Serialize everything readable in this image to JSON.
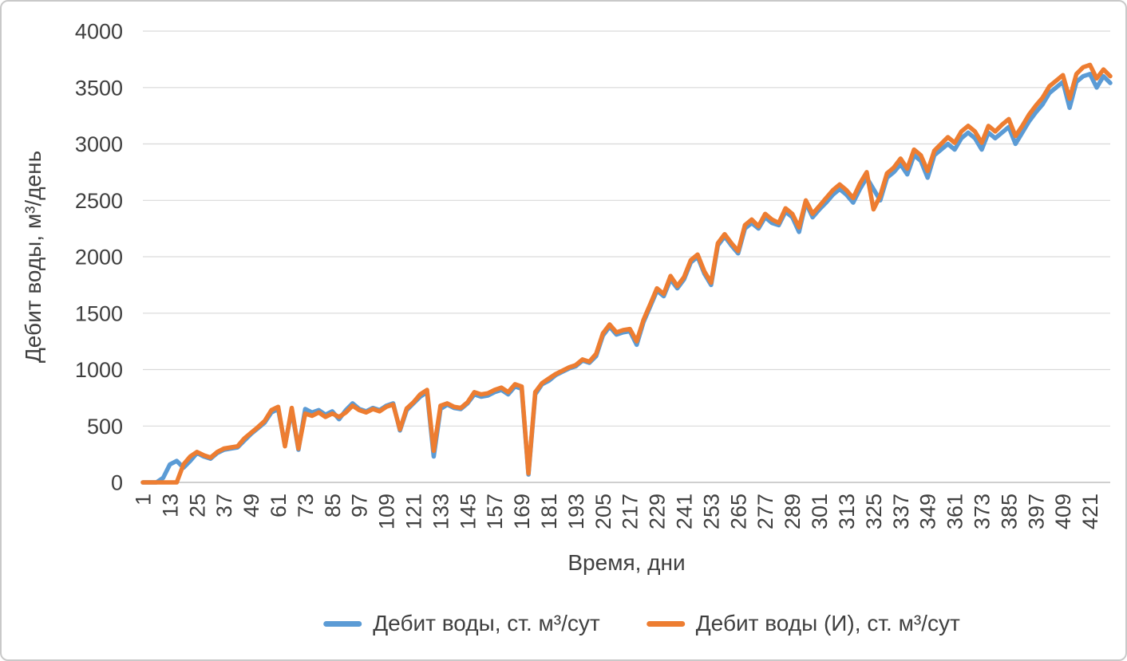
{
  "chart_data": {
    "type": "line",
    "title": "",
    "xlabel": "Время, дни",
    "ylabel": "Дебит воды, м³/день",
    "legend_position": "bottom",
    "grid": "horizontal",
    "xlim": [
      1,
      430
    ],
    "ylim": [
      0,
      4000
    ],
    "x_ticks": [
      1,
      13,
      25,
      37,
      49,
      61,
      73,
      85,
      97,
      109,
      121,
      133,
      145,
      157,
      169,
      181,
      193,
      205,
      217,
      229,
      241,
      253,
      265,
      277,
      289,
      301,
      313,
      325,
      337,
      349,
      361,
      373,
      385,
      397,
      409,
      421
    ],
    "y_ticks": [
      0,
      500,
      1000,
      1500,
      2000,
      2500,
      3000,
      3500,
      4000
    ],
    "colors": {
      "gridline": "#d9d9d9",
      "axis_line": "#bfbfbf",
      "text": "#404040"
    },
    "x": [
      1,
      4,
      7,
      10,
      13,
      16,
      19,
      22,
      25,
      28,
      31,
      34,
      37,
      40,
      43,
      46,
      49,
      52,
      55,
      58,
      61,
      64,
      67,
      70,
      73,
      76,
      79,
      82,
      85,
      88,
      91,
      94,
      97,
      100,
      103,
      106,
      109,
      112,
      115,
      118,
      121,
      124,
      127,
      130,
      133,
      136,
      139,
      142,
      145,
      148,
      151,
      154,
      157,
      160,
      163,
      166,
      169,
      172,
      175,
      178,
      181,
      184,
      187,
      190,
      193,
      196,
      199,
      202,
      205,
      208,
      211,
      214,
      217,
      220,
      223,
      226,
      229,
      232,
      235,
      238,
      241,
      244,
      247,
      250,
      253,
      256,
      259,
      262,
      265,
      268,
      271,
      274,
      277,
      280,
      283,
      286,
      289,
      292,
      295,
      298,
      301,
      304,
      307,
      310,
      313,
      316,
      319,
      322,
      325,
      328,
      331,
      334,
      337,
      340,
      343,
      346,
      349,
      352,
      355,
      358,
      361,
      364,
      367,
      370,
      373,
      376,
      379,
      382,
      385,
      388,
      391,
      394,
      397,
      400,
      403,
      406,
      409,
      412,
      415,
      418,
      421,
      424,
      427,
      430
    ],
    "series": [
      {
        "name": "Дебит воды, ст. м³/сут",
        "color": "#5B9BD5",
        "values": [
          0,
          0,
          0,
          40,
          160,
          190,
          130,
          190,
          260,
          230,
          210,
          260,
          290,
          300,
          310,
          370,
          430,
          480,
          530,
          620,
          650,
          330,
          640,
          290,
          650,
          620,
          640,
          600,
          630,
          560,
          640,
          700,
          650,
          630,
          660,
          640,
          680,
          700,
          460,
          640,
          700,
          760,
          800,
          230,
          650,
          690,
          660,
          650,
          700,
          780,
          760,
          770,
          800,
          820,
          780,
          850,
          830,
          70,
          780,
          870,
          900,
          950,
          980,
          1010,
          1030,
          1080,
          1060,
          1120,
          1300,
          1380,
          1310,
          1330,
          1340,
          1220,
          1420,
          1560,
          1700,
          1650,
          1800,
          1720,
          1800,
          1950,
          2000,
          1850,
          1750,
          2100,
          2180,
          2100,
          2030,
          2250,
          2300,
          2250,
          2350,
          2300,
          2280,
          2400,
          2350,
          2220,
          2480,
          2350,
          2420,
          2480,
          2550,
          2600,
          2550,
          2480,
          2600,
          2700,
          2600,
          2500,
          2700,
          2750,
          2820,
          2730,
          2900,
          2850,
          2700,
          2900,
          2950,
          3000,
          2950,
          3050,
          3100,
          3050,
          2950,
          3100,
          3050,
          3100,
          3150,
          3000,
          3100,
          3200,
          3280,
          3350,
          3450,
          3500,
          3550,
          3320,
          3550,
          3600,
          3620,
          3500,
          3600,
          3540
        ]
      },
      {
        "name": "Дебит воды (И), ст. м³/сут",
        "color": "#ED7D31",
        "values": [
          0,
          0,
          0,
          0,
          0,
          0,
          160,
          230,
          270,
          240,
          220,
          270,
          300,
          310,
          320,
          390,
          440,
          490,
          545,
          640,
          670,
          320,
          660,
          300,
          610,
          590,
          620,
          580,
          610,
          580,
          620,
          680,
          640,
          620,
          650,
          630,
          670,
          690,
          470,
          655,
          710,
          780,
          820,
          280,
          680,
          700,
          670,
          660,
          710,
          800,
          780,
          790,
          820,
          840,
          800,
          870,
          850,
          80,
          800,
          880,
          920,
          960,
          990,
          1020,
          1040,
          1090,
          1070,
          1140,
          1320,
          1400,
          1330,
          1350,
          1360,
          1250,
          1440,
          1580,
          1720,
          1670,
          1830,
          1740,
          1820,
          1970,
          2020,
          1870,
          1770,
          2120,
          2200,
          2120,
          2050,
          2280,
          2330,
          2270,
          2380,
          2330,
          2300,
          2430,
          2380,
          2260,
          2500,
          2380,
          2450,
          2520,
          2590,
          2640,
          2590,
          2520,
          2650,
          2750,
          2420,
          2540,
          2740,
          2790,
          2870,
          2780,
          2950,
          2900,
          2760,
          2940,
          3000,
          3060,
          3010,
          3110,
          3160,
          3110,
          3010,
          3160,
          3110,
          3170,
          3220,
          3070,
          3160,
          3260,
          3340,
          3410,
          3510,
          3560,
          3610,
          3400,
          3620,
          3680,
          3700,
          3580,
          3660,
          3600
        ]
      }
    ]
  }
}
